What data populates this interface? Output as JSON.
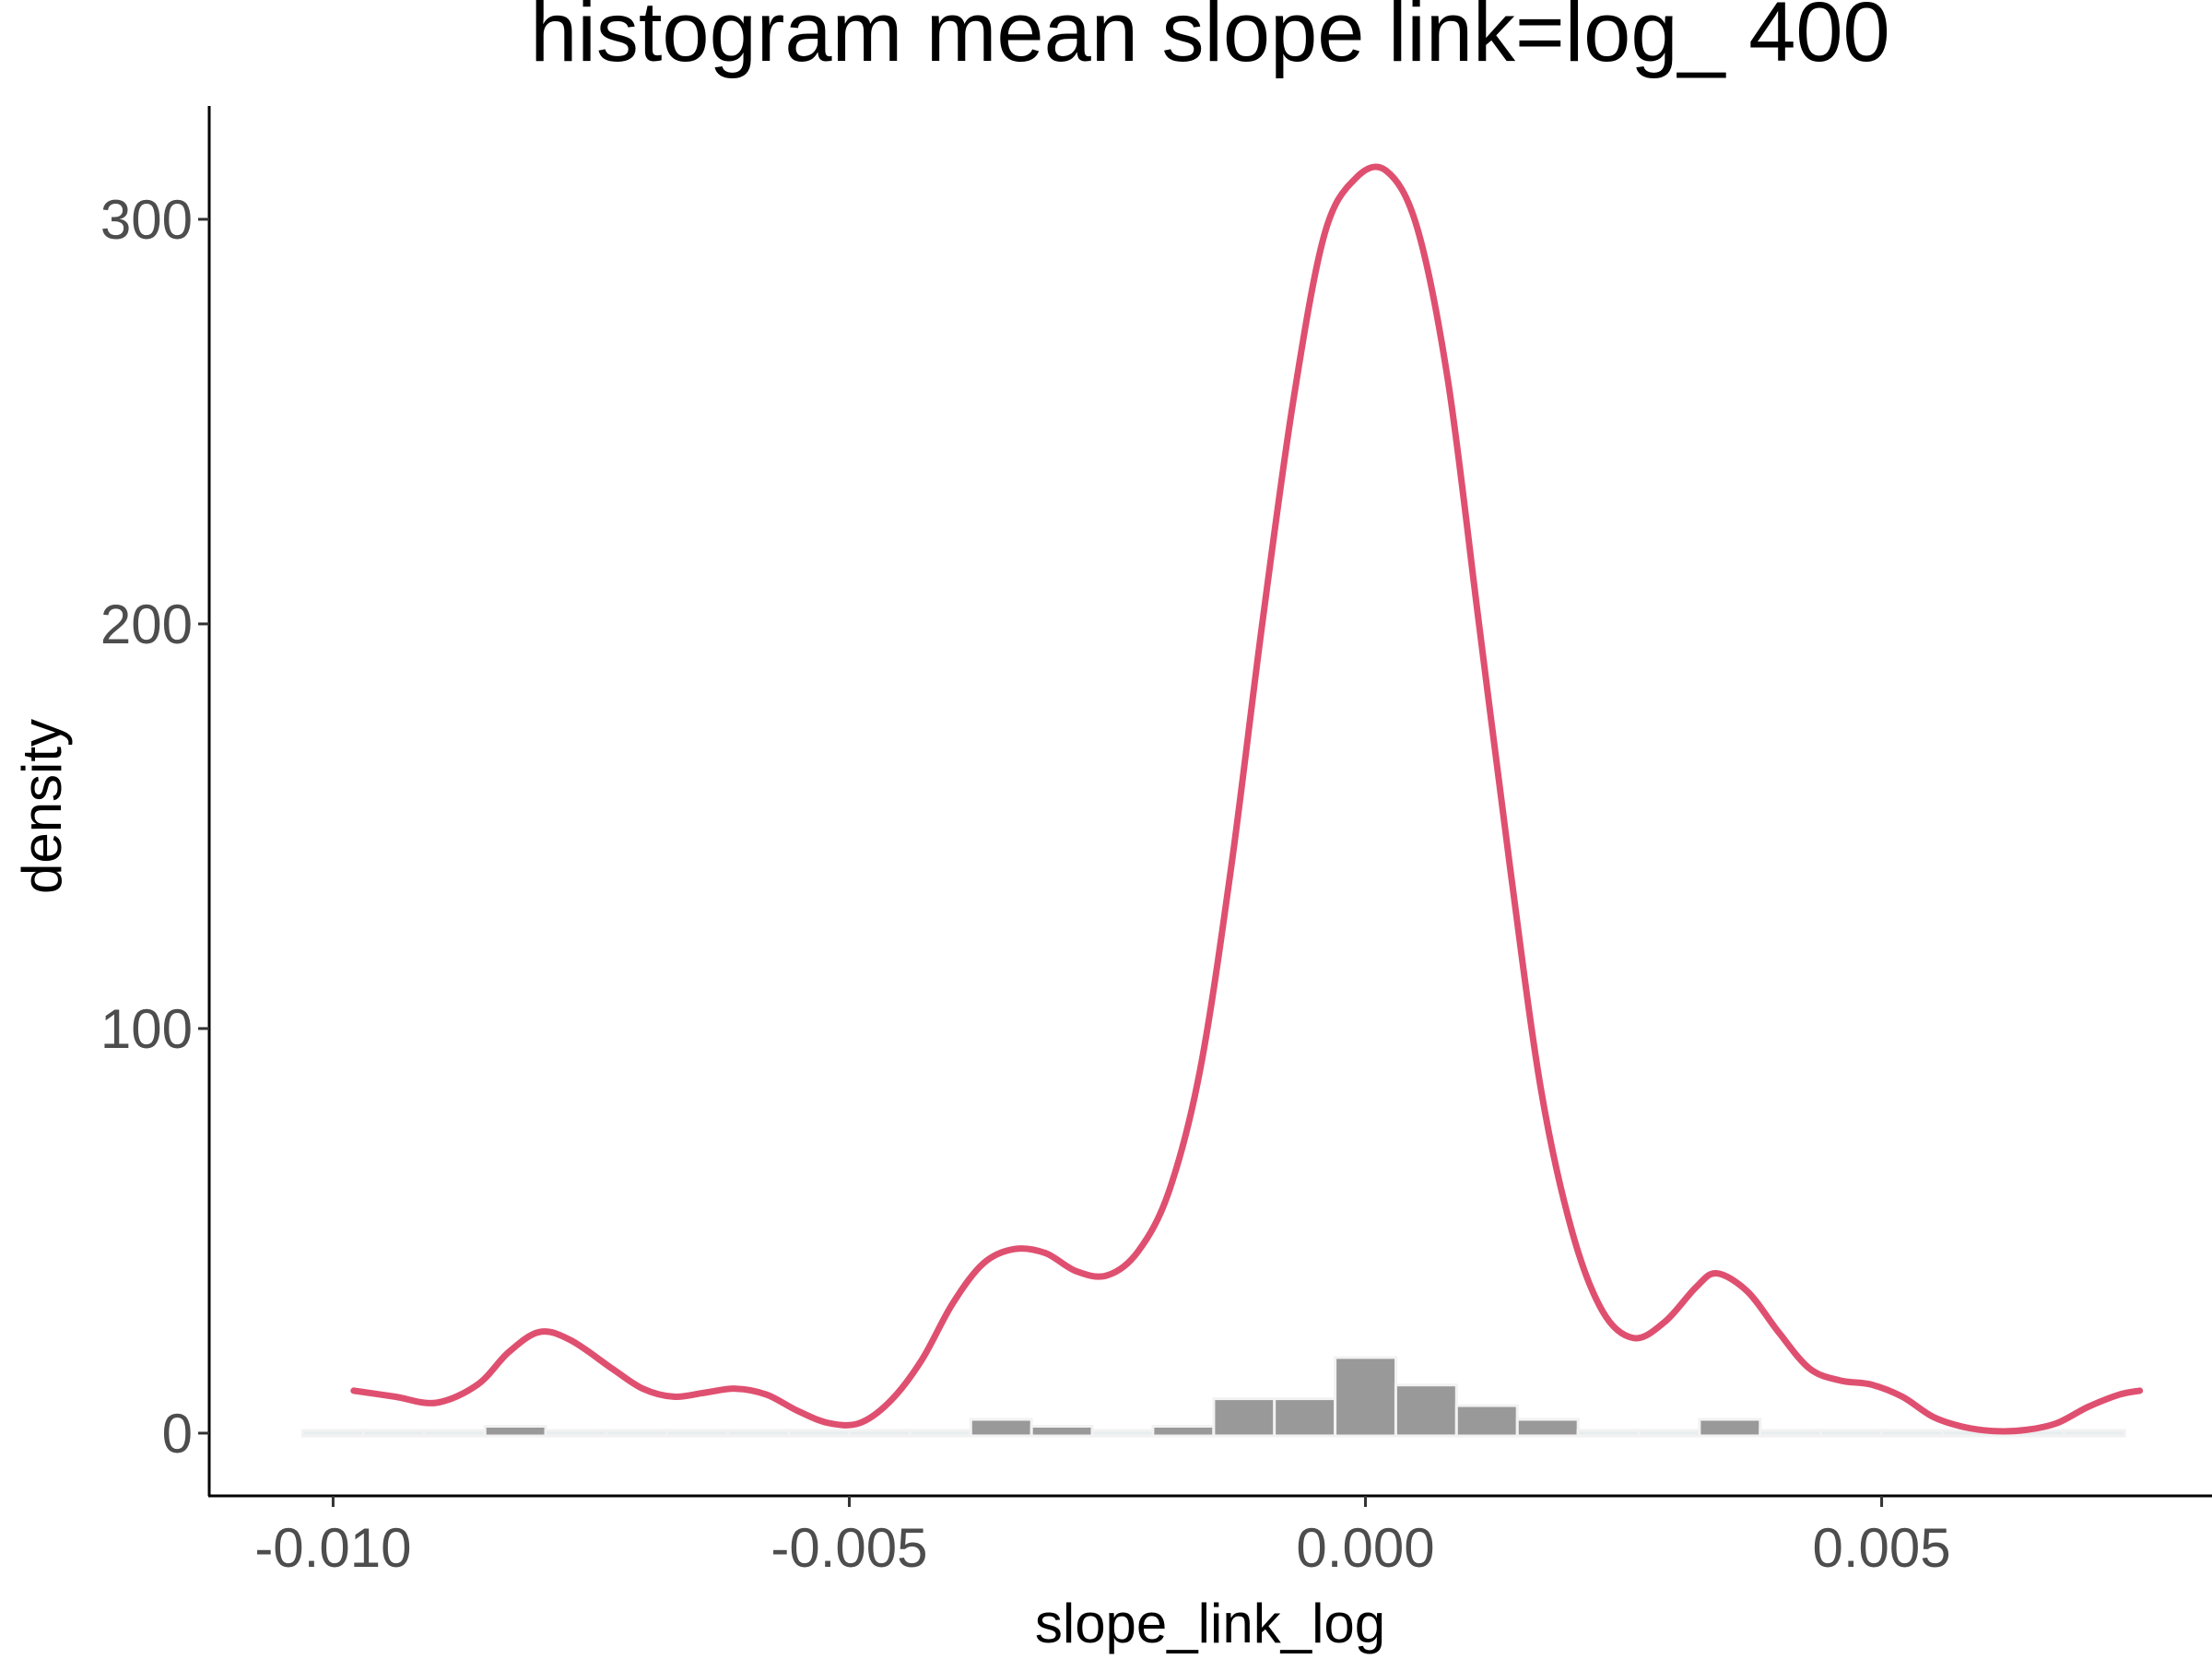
{
  "chart_data": {
    "type": "bar",
    "title": "histogram mean slope link=log_ 400",
    "xlabel": "slope_link_log",
    "ylabel": "density",
    "xlim": [
      -0.0112,
      0.0082
    ],
    "ylim": [
      -15.5,
      328
    ],
    "x_ticks": [
      -0.01,
      -0.005,
      0.0,
      0.005
    ],
    "x_tick_labels": [
      "-0.010",
      "-0.005",
      "0.000",
      "0.005"
    ],
    "y_ticks": [
      0,
      100,
      200,
      300
    ],
    "y_tick_labels": [
      "0",
      "100",
      "200",
      "300"
    ],
    "grid": false,
    "colors": {
      "bar_fill": "#999999",
      "bar_zero_fill": "#e7edee",
      "density_line": "#df5070"
    },
    "histogram": {
      "bin_width": 0.000588,
      "bins": [
        {
          "x": -0.01,
          "density": 0
        },
        {
          "x": -0.009412,
          "density": 0
        },
        {
          "x": -0.008824,
          "density": 0
        },
        {
          "x": -0.008235,
          "density": 1.7
        },
        {
          "x": -0.007647,
          "density": 0
        },
        {
          "x": -0.007059,
          "density": 0
        },
        {
          "x": -0.006471,
          "density": 0
        },
        {
          "x": -0.005882,
          "density": 0
        },
        {
          "x": -0.005294,
          "density": 0
        },
        {
          "x": -0.004706,
          "density": 0
        },
        {
          "x": -0.004118,
          "density": 0
        },
        {
          "x": -0.003529,
          "density": 3.4
        },
        {
          "x": -0.002941,
          "density": 1.7
        },
        {
          "x": -0.002353,
          "density": 0
        },
        {
          "x": -0.001765,
          "density": 1.7
        },
        {
          "x": -0.001176,
          "density": 8.5
        },
        {
          "x": -0.000588,
          "density": 8.5
        },
        {
          "x": 0.0,
          "density": 18.7
        },
        {
          "x": 0.000588,
          "density": 11.9
        },
        {
          "x": 0.001176,
          "density": 6.8
        },
        {
          "x": 0.001765,
          "density": 3.4
        },
        {
          "x": 0.002353,
          "density": 0
        },
        {
          "x": 0.002941,
          "density": 0
        },
        {
          "x": 0.003529,
          "density": 3.4
        },
        {
          "x": 0.004118,
          "density": 0
        },
        {
          "x": 0.004706,
          "density": 0
        },
        {
          "x": 0.005294,
          "density": 0
        },
        {
          "x": 0.005882,
          "density": 0
        },
        {
          "x": 0.006471,
          "density": 0
        },
        {
          "x": 0.007059,
          "density": 0
        }
      ]
    },
    "density_curve": [
      [
        -0.0098,
        10.5
      ],
      [
        -0.0094,
        9.0
      ],
      [
        -0.009,
        7.5
      ],
      [
        -0.0086,
        12.0
      ],
      [
        -0.0083,
        20.0
      ],
      [
        -0.008,
        25.0
      ],
      [
        -0.0077,
        23.0
      ],
      [
        -0.0073,
        16.0
      ],
      [
        -0.007,
        11.0
      ],
      [
        -0.0067,
        9.0
      ],
      [
        -0.0064,
        10.0
      ],
      [
        -0.0061,
        11.0
      ],
      [
        -0.0058,
        9.5
      ],
      [
        -0.0055,
        5.5
      ],
      [
        -0.0052,
        2.5
      ],
      [
        -0.0049,
        2.5
      ],
      [
        -0.0046,
        8.0
      ],
      [
        -0.0043,
        18.0
      ],
      [
        -0.004,
        32.0
      ],
      [
        -0.0037,
        42.0
      ],
      [
        -0.0034,
        45.5
      ],
      [
        -0.0031,
        44.5
      ],
      [
        -0.0028,
        40.0
      ],
      [
        -0.0025,
        39.0
      ],
      [
        -0.0022,
        45.0
      ],
      [
        -0.0019,
        60.0
      ],
      [
        -0.0016,
        90.0
      ],
      [
        -0.0013,
        140.0
      ],
      [
        -0.001,
        200.0
      ],
      [
        -0.0007,
        255.0
      ],
      [
        -0.0004,
        296.0
      ],
      [
        -0.0001,
        310.0
      ],
      [
        0.0002,
        312.0
      ],
      [
        0.0005,
        298.0
      ],
      [
        0.0008,
        260.0
      ],
      [
        0.0011,
        200.0
      ],
      [
        0.0014,
        140.0
      ],
      [
        0.0017,
        85.0
      ],
      [
        0.002,
        50.0
      ],
      [
        0.0023,
        30.0
      ],
      [
        0.0026,
        23.5
      ],
      [
        0.0029,
        27.5
      ],
      [
        0.0032,
        36.0
      ],
      [
        0.0034,
        39.5
      ],
      [
        0.0037,
        35.0
      ],
      [
        0.004,
        25.0
      ],
      [
        0.0043,
        16.0
      ],
      [
        0.0046,
        13.0
      ],
      [
        0.0049,
        12.0
      ],
      [
        0.0052,
        9.0
      ],
      [
        0.0055,
        4.0
      ],
      [
        0.0058,
        1.5
      ],
      [
        0.0061,
        0.5
      ],
      [
        0.0064,
        0.8
      ],
      [
        0.0067,
        2.5
      ],
      [
        0.007,
        6.5
      ],
      [
        0.0073,
        9.5
      ],
      [
        0.0075,
        10.5
      ]
    ]
  }
}
